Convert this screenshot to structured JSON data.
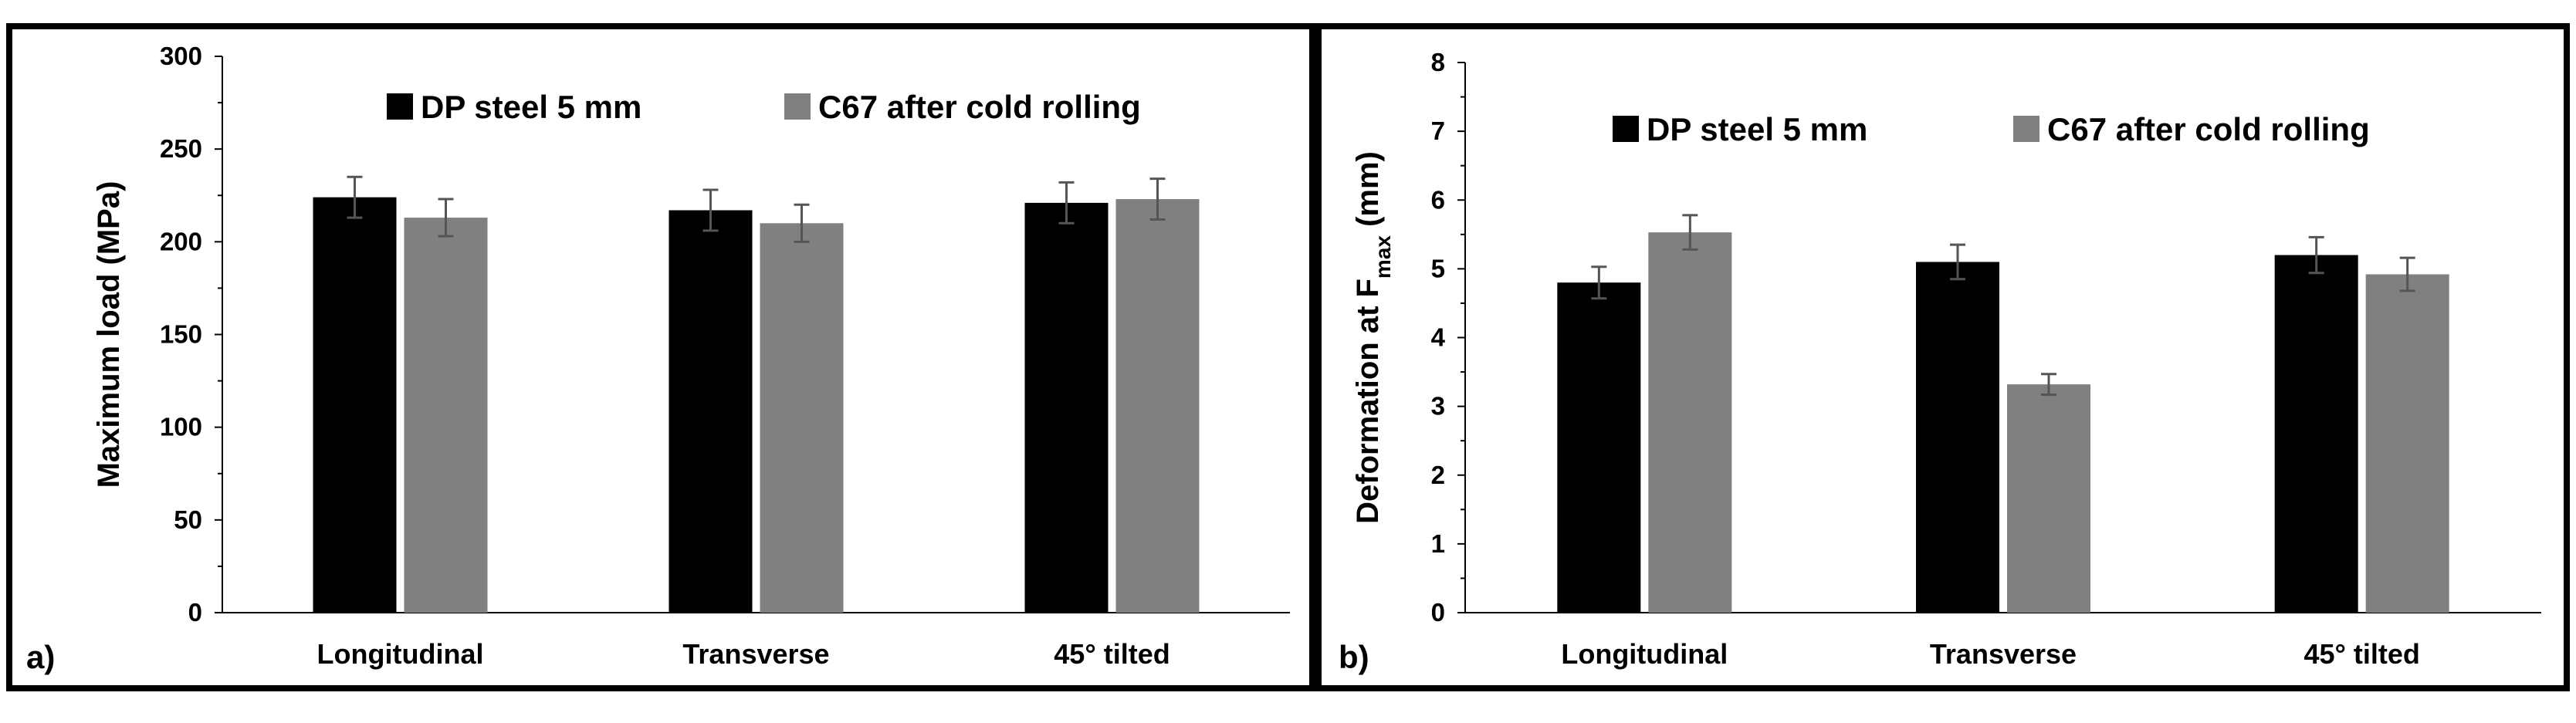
{
  "chart_data": [
    {
      "panel_label": "a)",
      "type": "bar",
      "categories": [
        "Longitudinal",
        "Transverse",
        "45° tilted"
      ],
      "series": [
        {
          "name": "DP steel 5 mm",
          "color": "#000000",
          "values": [
            224,
            217,
            221
          ],
          "errors": [
            11,
            11,
            11
          ]
        },
        {
          "name": "C67 after cold rolling",
          "color": "#808080",
          "values": [
            213,
            210,
            223
          ],
          "errors": [
            10,
            10,
            11
          ]
        }
      ],
      "ylabel": "Maximum load (MPa)",
      "xlabel": "",
      "ylim": [
        0,
        300
      ],
      "yticks": [
        0,
        50,
        100,
        150,
        200,
        250,
        300
      ],
      "grid": false,
      "legend": "top"
    },
    {
      "panel_label": "b)",
      "type": "bar",
      "categories": [
        "Longitudinal",
        "Transverse",
        "45° tilted"
      ],
      "series": [
        {
          "name": "DP steel 5 mm",
          "color": "#000000",
          "values": [
            4.8,
            5.1,
            5.2
          ],
          "errors": [
            0.23,
            0.25,
            0.26
          ]
        },
        {
          "name": "C67 after cold rolling",
          "color": "#808080",
          "values": [
            5.53,
            3.32,
            4.92
          ],
          "errors": [
            0.25,
            0.15,
            0.24
          ]
        }
      ],
      "ylabel_main": "Deformation at F",
      "ylabel_sub": "max",
      "ylabel_unit": " (mm)",
      "xlabel": "",
      "ylim": [
        0,
        8
      ],
      "yticks": [
        0,
        1,
        2,
        3,
        4,
        5,
        6,
        7,
        8
      ],
      "grid": false,
      "legend": "top"
    }
  ]
}
